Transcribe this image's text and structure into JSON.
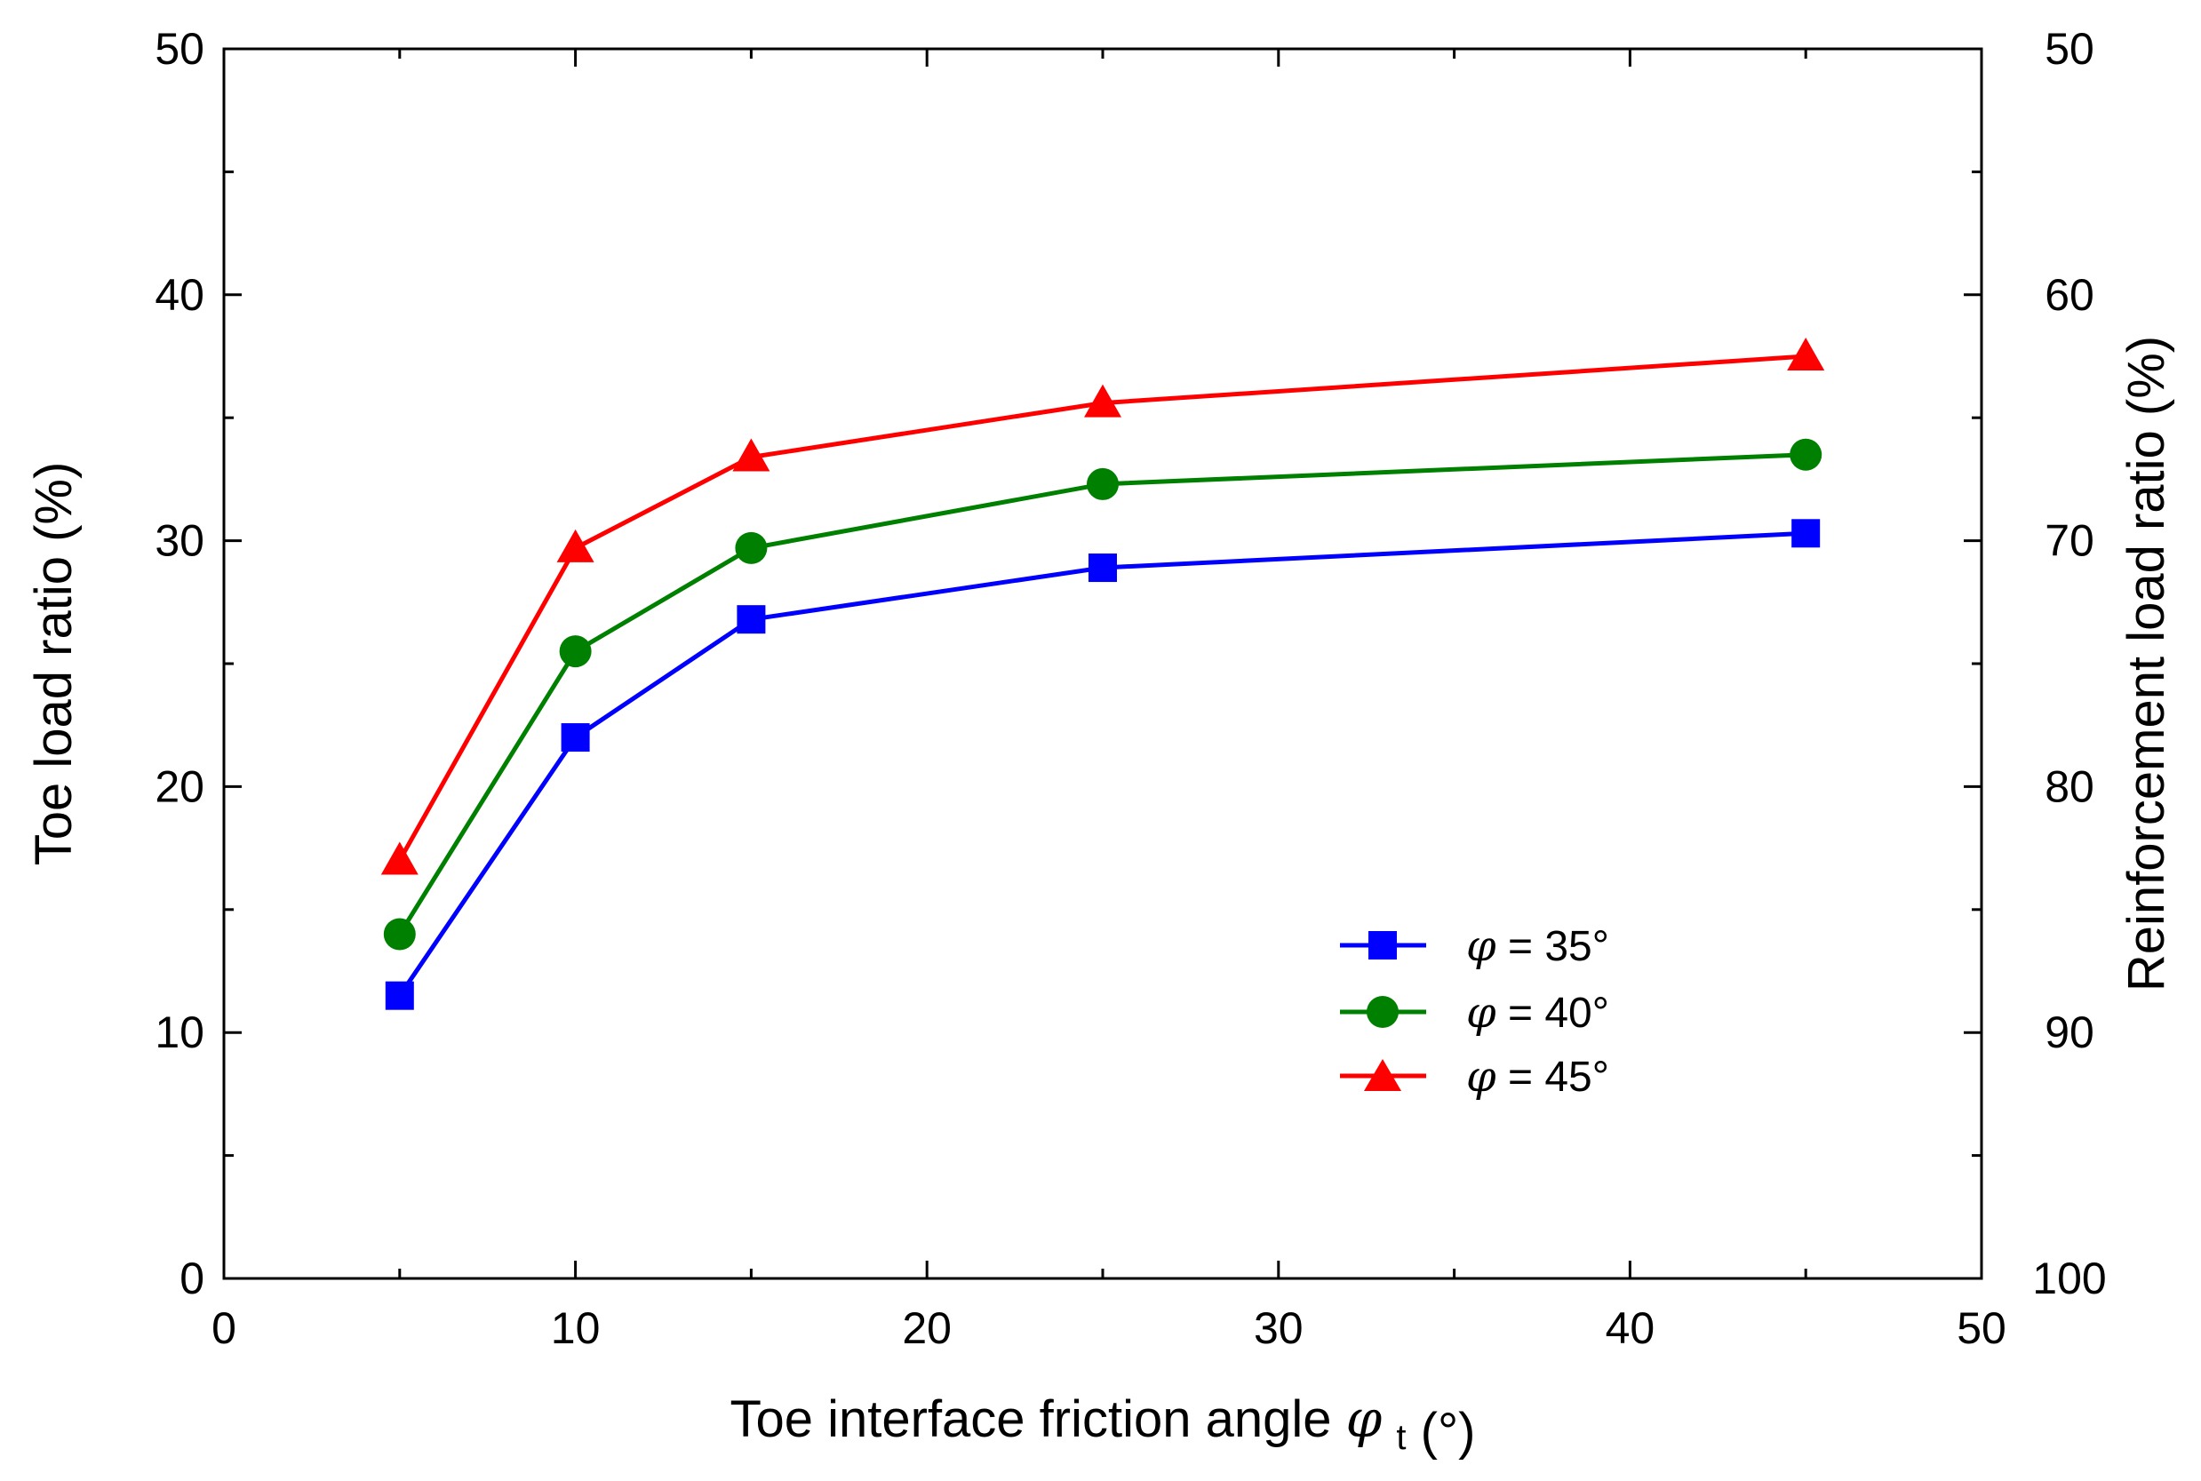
{
  "chart_data": {
    "type": "line",
    "title": "",
    "xlabel": "Toe interface friction angle",
    "xlabel_symbol": "φ",
    "xlabel_subscript": "t",
    "xlabel_unit": "(°)",
    "ylabel": "Toe load ratio (%)",
    "y2label": "Reinforcement load ratio (%)",
    "xlim": [
      0,
      50
    ],
    "ylim": [
      0,
      50
    ],
    "y2lim": [
      100,
      50
    ],
    "x_ticks": [
      "0",
      "10",
      "20",
      "30",
      "40",
      "50"
    ],
    "y_ticks": [
      "0",
      "10",
      "20",
      "30",
      "40",
      "50"
    ],
    "y2_ticks": [
      "100",
      "90",
      "80",
      "70",
      "60",
      "50"
    ],
    "grid": false,
    "legend_position": "bottom-right",
    "x": [
      5,
      10,
      15,
      25,
      45
    ],
    "series": [
      {
        "name": "φ = 35°",
        "symbol": "φ",
        "label_rest": " = 35°",
        "marker": "square",
        "color": "#0000ff",
        "values": [
          11.5,
          22.0,
          26.8,
          28.9,
          30.3
        ]
      },
      {
        "name": "φ = 40°",
        "symbol": "φ",
        "label_rest": " = 40°",
        "marker": "circle",
        "color": "#008000",
        "values": [
          14.0,
          25.5,
          29.7,
          32.3,
          33.5
        ]
      },
      {
        "name": "φ = 45°",
        "symbol": "φ",
        "label_rest": " = 45°",
        "marker": "triangle",
        "color": "#ff0000",
        "values": [
          17.0,
          29.7,
          33.4,
          35.6,
          37.5
        ]
      }
    ]
  }
}
